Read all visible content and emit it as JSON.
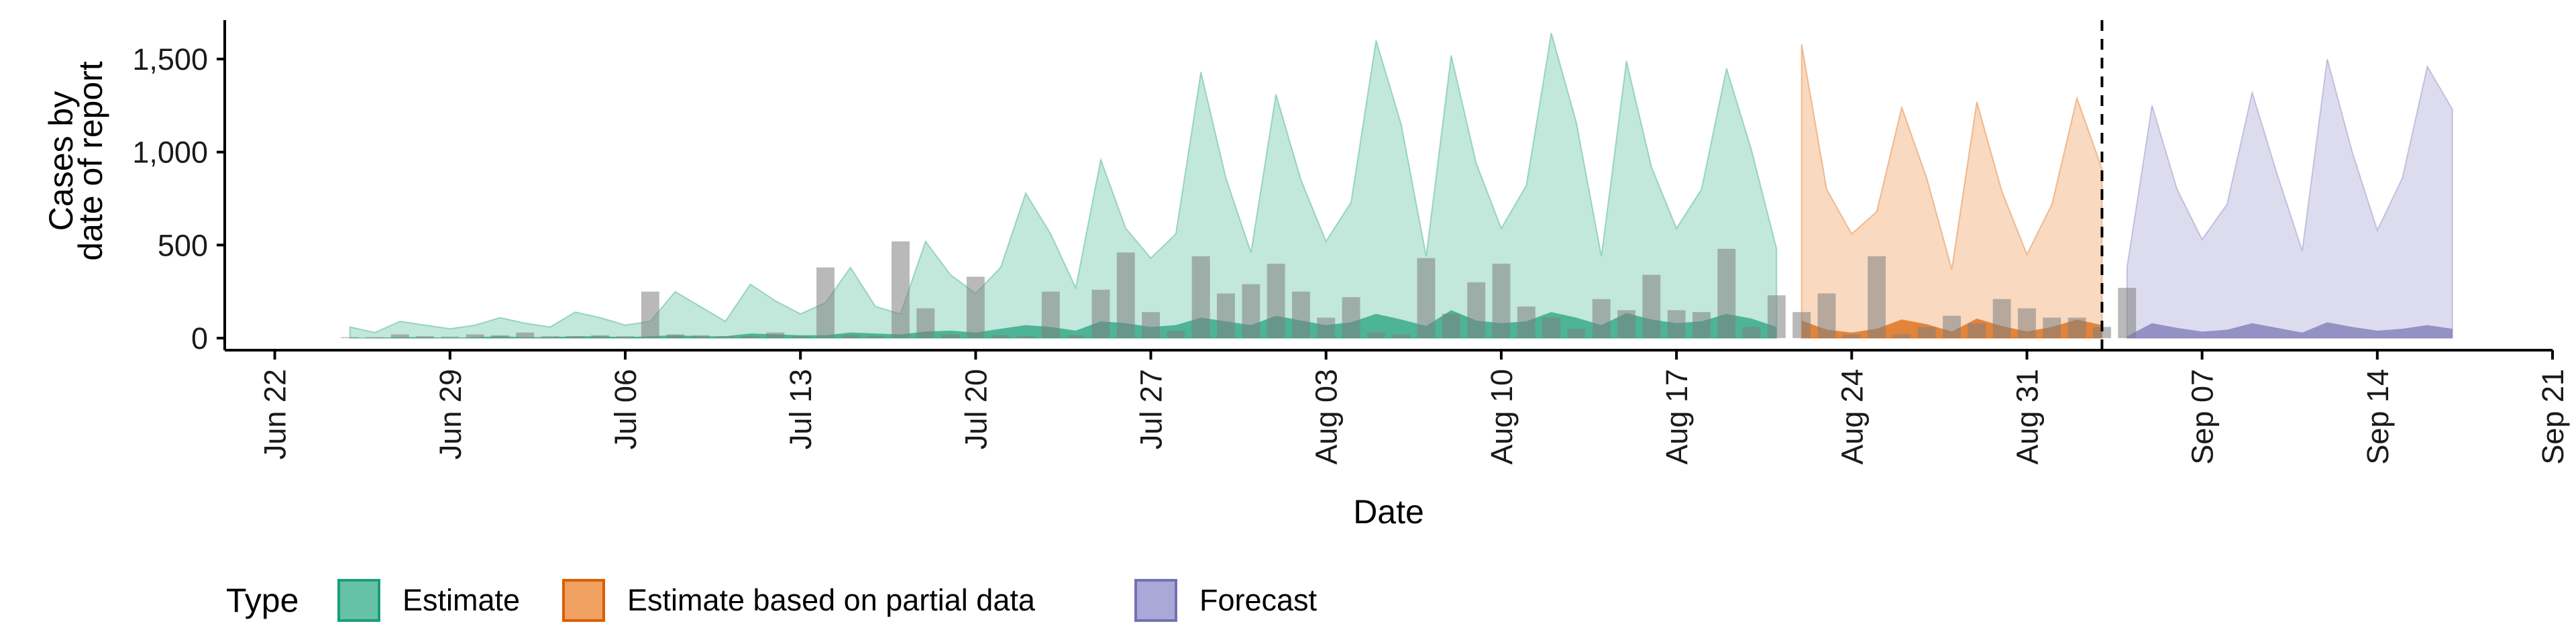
{
  "chart_data": {
    "type": "area",
    "xlabel": "Date",
    "ylabel": [
      "Cases by",
      "date of report"
    ],
    "ylim": [
      0,
      1700
    ],
    "y_ticks": [
      0,
      500,
      1000,
      1500
    ],
    "y_tick_labels": [
      "0",
      "500",
      "1,000",
      "1,500"
    ],
    "xlim": [
      "2020-06-20",
      "2020-09-21"
    ],
    "x_ticks": [
      "2020-06-22",
      "2020-06-29",
      "2020-07-06",
      "2020-07-13",
      "2020-07-20",
      "2020-07-27",
      "2020-08-03",
      "2020-08-10",
      "2020-08-17",
      "2020-08-24",
      "2020-08-31",
      "2020-09-07",
      "2020-09-14",
      "2020-09-21"
    ],
    "x_tick_labels": [
      "Jun 22",
      "Jun 29",
      "Jul 06",
      "Jul 13",
      "Jul 20",
      "Jul 27",
      "Aug 03",
      "Aug 10",
      "Aug 17",
      "Aug 24",
      "Aug 31",
      "Sep 07",
      "Sep 14",
      "Sep 21"
    ],
    "forecast_date_line": "2020-09-03",
    "legend": {
      "title": "Type",
      "position": "bottom",
      "items": [
        {
          "label": "Estimate",
          "fill": "#66c2a5",
          "stroke": "#1b9e77"
        },
        {
          "label": "Estimate based on partial data",
          "fill": "#f0a060",
          "stroke": "#d95f02"
        },
        {
          "label": "Forecast",
          "fill": "#aaa8d6",
          "stroke": "#7570b3"
        }
      ]
    },
    "series": [
      {
        "name": "Estimate",
        "color": "#1b9e77",
        "start": "2020-06-25",
        "upper": [
          60,
          30,
          90,
          70,
          50,
          70,
          110,
          80,
          60,
          140,
          110,
          70,
          90,
          250,
          170,
          90,
          290,
          200,
          130,
          190,
          380,
          170,
          130,
          520,
          340,
          240,
          380,
          780,
          560,
          270,
          960,
          590,
          430,
          560,
          1430,
          860,
          460,
          1310,
          850,
          520,
          730,
          1600,
          1150,
          440,
          1520,
          940,
          590,
          820,
          1640,
          1160,
          440,
          1490,
          920,
          590,
          800,
          1450,
          1010,
          480
        ],
        "lower": [
          0,
          0,
          5,
          5,
          0,
          5,
          10,
          5,
          5,
          10,
          10,
          5,
          10,
          15,
          10,
          10,
          25,
          20,
          15,
          15,
          30,
          25,
          20,
          35,
          40,
          30,
          50,
          70,
          60,
          40,
          90,
          80,
          60,
          70,
          110,
          90,
          70,
          120,
          95,
          70,
          85,
          130,
          100,
          65,
          150,
          95,
          80,
          90,
          140,
          110,
          70,
          135,
          100,
          80,
          90,
          130,
          105,
          60
        ]
      },
      {
        "name": "Estimate based on partial data",
        "color": "#d95f02",
        "start": "2020-08-22",
        "upper": [
          1580,
          800,
          560,
          680,
          1240,
          860,
          370,
          1270,
          790,
          450,
          720,
          1290,
          910
        ],
        "lower": [
          95,
          45,
          30,
          50,
          100,
          75,
          35,
          105,
          65,
          35,
          60,
          100,
          70
        ]
      },
      {
        "name": "Forecast",
        "color": "#7570b3",
        "start": "2020-09-04",
        "upper": [
          380,
          1250,
          800,
          530,
          720,
          1320,
          880,
          470,
          1500,
          1000,
          580,
          860,
          1460,
          1230
        ],
        "lower": [
          10,
          80,
          55,
          35,
          45,
          80,
          55,
          30,
          85,
          60,
          40,
          50,
          70,
          50
        ]
      }
    ],
    "reported_cases": {
      "start": "2020-06-25",
      "values": [
        5,
        5,
        20,
        10,
        8,
        20,
        15,
        30,
        10,
        10,
        15,
        10,
        250,
        20,
        15,
        10,
        10,
        30,
        10,
        380,
        15,
        10,
        520,
        160,
        20,
        330,
        15,
        10,
        250,
        15,
        260,
        460,
        140,
        40,
        440,
        240,
        290,
        400,
        250,
        110,
        220,
        30,
        20,
        430,
        130,
        300,
        400,
        170,
        110,
        50,
        210,
        150,
        340,
        150,
        140,
        480,
        60,
        230,
        140,
        240,
        20,
        440,
        20,
        60,
        120,
        80,
        210,
        160,
        110,
        110,
        60,
        270
      ]
    }
  }
}
